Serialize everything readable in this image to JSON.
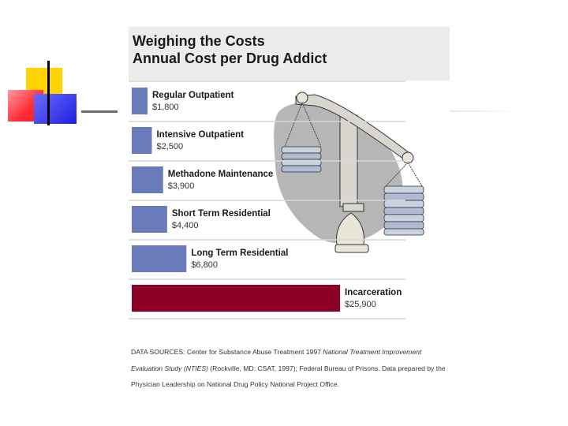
{
  "slide": {
    "title_line1": "Weighing the Costs",
    "title_line2": "Annual Cost per Drug Addict"
  },
  "chart_data": {
    "type": "bar",
    "orientation": "horizontal",
    "title": "Weighing the Costs",
    "subtitle": "Annual Cost per Drug Addict",
    "categories": [
      "Regular Outpatient",
      "Intensive Outpatient",
      "Methadone Maintenance",
      "Short Term Residential",
      "Long Term Residential",
      "Incarceration"
    ],
    "values": [
      1800,
      2500,
      3900,
      4400,
      6800,
      25900
    ],
    "value_labels": [
      "$1,800",
      "$2,500",
      "$3,900",
      "$4,400",
      "$6,800",
      "$25,900"
    ],
    "colors": {
      "treatment": "#6a7bbb",
      "incarceration": "#8c0026",
      "divider": "#d7d7d7"
    },
    "grid": false,
    "legend": "none"
  },
  "source": {
    "prefix": "DATA SOURCES: Center for Substance Abuse Treatment 1997 ",
    "italic": "National Treatment Improvement Evaluation Study (NTIES)",
    "suffix": " (Rockville, MD: CSAT, 1997); Federal Bureau of Prisons. Data prepared by the Physician Leadership on National Drug Policy National Project Office."
  },
  "illustration": {
    "icon": "balance-scale-icon"
  }
}
